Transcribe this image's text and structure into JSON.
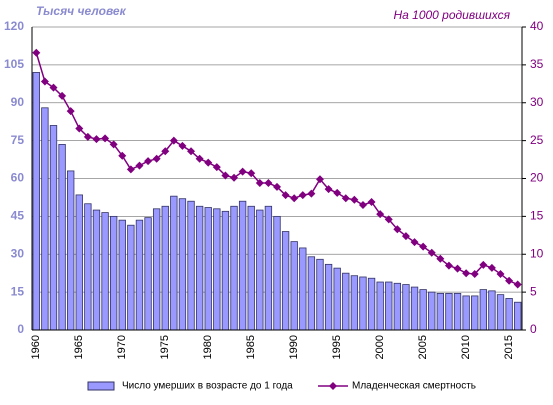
{
  "chart_data": {
    "type": "bar_line",
    "y_label": "Тысяч человек",
    "y2_label": "На 1000 родившихся",
    "categories": [
      "1960",
      null,
      null,
      null,
      null,
      "1965",
      null,
      null,
      null,
      null,
      "1970",
      null,
      null,
      null,
      null,
      "1975",
      null,
      null,
      null,
      null,
      "1980",
      null,
      null,
      null,
      null,
      "1985",
      null,
      null,
      null,
      null,
      "1990",
      null,
      null,
      null,
      null,
      "1995",
      null,
      null,
      null,
      null,
      "2000",
      null,
      null,
      null,
      null,
      "2005",
      null,
      null,
      null,
      null,
      "2010",
      null,
      null,
      null,
      null,
      "2015",
      null
    ],
    "series": [
      {
        "name": "Число умерших в возрасте до 1 года",
        "color": "#9999ff",
        "type": "bar",
        "values": [
          102,
          88,
          81,
          73.5,
          63,
          53.5,
          50,
          47.5,
          46.5,
          45,
          43.5,
          41.5,
          43.5,
          44.5,
          48,
          49,
          53,
          52,
          51,
          49,
          48.5,
          48,
          47,
          49,
          51,
          49,
          47.5,
          49,
          45,
          39,
          35,
          32.5,
          29,
          28,
          26,
          24.5,
          22.5,
          21.5,
          21,
          20.5,
          19,
          19,
          18.5,
          18,
          17,
          16,
          15,
          14.5,
          14.5,
          14.5,
          13.5,
          13.5,
          16,
          15.5,
          14,
          12.5,
          11
        ]
      },
      {
        "name": "Младенческая смертность",
        "color": "#800080",
        "type": "line",
        "axis": "y2",
        "values": [
          36.6,
          32.8,
          32.0,
          30.9,
          28.9,
          26.6,
          25.5,
          25.2,
          25.3,
          24.5,
          23.0,
          21.2,
          21.7,
          22.3,
          22.6,
          23.6,
          25.0,
          24.3,
          23.6,
          22.6,
          22.1,
          21.5,
          20.4,
          20.1,
          20.9,
          20.7,
          19.4,
          19.4,
          18.9,
          17.8,
          17.4,
          17.8,
          18.0,
          19.9,
          18.6,
          18.1,
          17.4,
          17.2,
          16.5,
          16.9,
          15.3,
          14.6,
          13.3,
          12.4,
          11.6,
          11.0,
          10.2,
          9.4,
          8.5,
          8.1,
          7.5,
          7.4,
          8.6,
          8.2,
          7.4,
          6.5,
          6.0
        ]
      }
    ],
    "ylim": [
      0,
      120
    ],
    "yticks": [
      0,
      15,
      30,
      45,
      60,
      75,
      90,
      105,
      120
    ],
    "y2lim": [
      0,
      40
    ],
    "y2ticks": [
      0,
      5,
      10,
      15,
      20,
      25,
      30,
      35,
      40
    ],
    "grid": true
  }
}
